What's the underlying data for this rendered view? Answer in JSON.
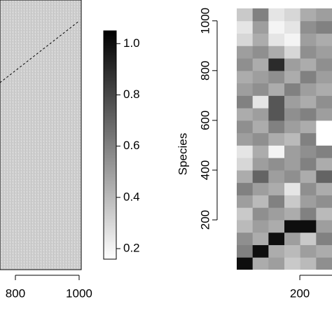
{
  "chart_data": [
    {
      "type": "heatmap",
      "xlim": [
        0,
        1006
      ],
      "xticks": [
        800,
        1000
      ],
      "colorbar": {
        "lim": [
          0.16,
          1.05
        ],
        "ticks": [
          0.2,
          0.4,
          0.6,
          0.8,
          {
            "value": 1.0,
            "label": "1.0"
          }
        ]
      }
    },
    {
      "type": "heatmap",
      "ylabel": "Species",
      "xlim": [
        0,
        302
      ],
      "ylim": [
        0,
        1050
      ],
      "xticks": [
        200
      ],
      "yticks": [
        200,
        400,
        600,
        800,
        1000
      ],
      "z": [
        [
          1.0,
          0.45,
          0.5,
          0.35,
          0.4,
          0.55
        ],
        [
          0.6,
          1.0,
          0.45,
          0.4,
          0.5,
          0.45
        ],
        [
          0.55,
          0.45,
          1.0,
          0.5,
          0.35,
          0.6
        ],
        [
          0.4,
          0.5,
          0.45,
          1.0,
          1.0,
          0.5
        ],
        [
          0.35,
          0.55,
          0.5,
          0.45,
          0.6,
          0.4
        ],
        [
          0.5,
          0.4,
          0.6,
          0.35,
          0.5,
          0.55
        ],
        [
          0.6,
          0.5,
          0.45,
          0.25,
          0.55,
          0.45
        ],
        [
          0.45,
          0.7,
          0.5,
          0.55,
          0.45,
          0.7
        ],
        [
          0.3,
          0.5,
          0.55,
          0.5,
          0.6,
          0.45
        ],
        [
          0.25,
          0.45,
          0.2,
          0.5,
          0.55,
          0.6
        ],
        [
          0.5,
          0.55,
          0.45,
          0.4,
          0.6,
          0.16
        ],
        [
          0.55,
          0.45,
          0.6,
          0.5,
          0.45,
          0.16
        ],
        [
          0.45,
          0.5,
          0.75,
          0.55,
          0.6,
          0.5
        ],
        [
          0.6,
          0.25,
          0.75,
          0.5,
          0.45,
          0.55
        ],
        [
          0.5,
          0.55,
          0.45,
          0.6,
          0.5,
          0.45
        ],
        [
          0.45,
          0.5,
          0.55,
          0.45,
          0.6,
          0.5
        ],
        [
          0.55,
          0.45,
          0.9,
          0.5,
          0.45,
          0.55
        ],
        [
          0.5,
          0.55,
          0.45,
          0.3,
          0.55,
          0.5
        ],
        [
          0.3,
          0.45,
          0.25,
          0.2,
          0.5,
          0.45
        ],
        [
          0.25,
          0.5,
          0.2,
          0.25,
          0.55,
          0.6
        ],
        [
          0.35,
          0.6,
          0.25,
          0.3,
          0.45,
          0.5
        ]
      ]
    }
  ]
}
